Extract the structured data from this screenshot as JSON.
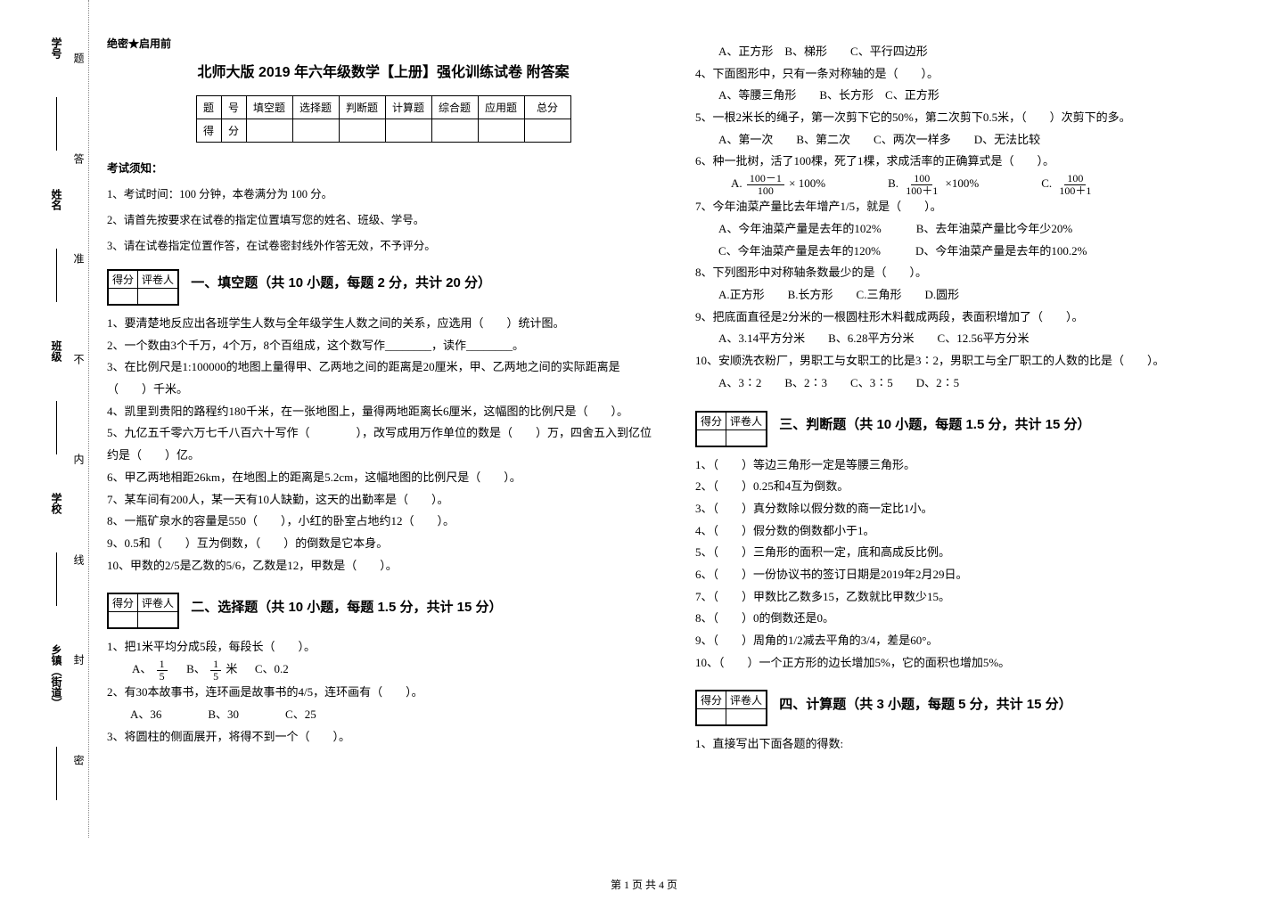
{
  "side": {
    "items1": [
      "乡镇（街道）",
      "学校",
      "班级",
      "姓名",
      "学号"
    ],
    "items2": [
      "密",
      "封",
      "线",
      "内",
      "不",
      "准",
      "答",
      "题"
    ]
  },
  "secret": "绝密★启用前",
  "title": "北师大版 2019 年六年级数学【上册】强化训练试卷 附答案",
  "score_table": {
    "row1": [
      "题",
      "号",
      "填空题",
      "选择题",
      "判断题",
      "计算题",
      "综合题",
      "应用题",
      "总分"
    ],
    "row2": [
      "得",
      "分",
      "",
      "",
      "",
      "",
      "",
      "",
      ""
    ]
  },
  "exam_notice_title": "考试须知：",
  "exam_notices": [
    "1、考试时间：100 分钟，本卷满分为 100 分。",
    "2、请首先按要求在试卷的指定位置填写您的姓名、班级、学号。",
    "3、请在试卷指定位置作答，在试卷密封线外作答无效，不予评分。"
  ],
  "grade_box": {
    "c1": "得分",
    "c2": "评卷人"
  },
  "section1": {
    "title": "一、填空题（共 10 小题，每题 2 分，共计 20 分）",
    "items": [
      "1、要清楚地反应出各班学生人数与全年级学生人数之间的关系，应选用（　　）统计图。",
      "2、一个数由3个千万，4个万，8个百组成，这个数写作________，读作________。",
      "3、在比例尺是1:100000的地图上量得甲、乙两地之间的距离是20厘米，甲、乙两地之间的实际距离是（　　）千米。",
      "4、凯里到贵阳的路程约180千米，在一张地图上，量得两地距离长6厘米，这幅图的比例尺是（　　）。",
      "5、九亿五千零六万七千八百六十写作（　　　　），改写成用万作单位的数是（　　）万，四舍五入到亿位约是（　　）亿。",
      "6、甲乙两地相距26km，在地图上的距离是5.2cm，这幅地图的比例尺是（　　）。",
      "7、某车间有200人，某一天有10人缺勤，这天的出勤率是（　　）。",
      "8、一瓶矿泉水的容量是550（　　），小红的卧室占地约12（　　）。",
      "9、0.5和（　　）互为倒数，（　　）的倒数是它本身。",
      "10、甲数的2/5是乙数的5/6，乙数是12，甲数是（　　）。"
    ]
  },
  "section2": {
    "title": "二、选择题（共 10 小题，每题 1.5 分，共计 15 分）",
    "items": [
      "1、把1米平均分成5段，每段长（　　）。",
      "2、有30本故事书，连环画是故事书的4/5，连环画有（　　）。",
      "3、将圆柱的侧面展开，将得不到一个（　　）。",
      "4、下面图形中，只有一条对称轴的是（　　）。",
      "5、一根2米长的绳子，第一次剪下它的50%，第二次剪下0.5米，（　　）次剪下的多。",
      "6、种一批树，活了100棵，死了1棵，求成活率的正确算式是（　　）。",
      "7、今年油菜产量比去年增产1/5，就是（　　）。",
      "8、下列图形中对称轴条数最少的是（　　）。",
      "9、把底面直径是2分米的一根圆柱形木料截成两段，表面积增加了（　　）。",
      "10、安顺洗衣粉厂，男职工与女职工的比是3∶2，男职工与全厂职工的人数的比是（　　）。"
    ],
    "opt1": {
      "a": "A、",
      "b": "B、",
      "bunit": "米",
      "c": "C、0.2"
    },
    "opt2": "　　A、36　　　　B、30　　　　C、25",
    "opt3": "　　A、正方形　B、梯形　　C、平行四边形",
    "opt4": "　　A、等腰三角形　　B、长方形　C、正方形",
    "opt5": "　　A、第一次　　B、第二次　　C、两次一样多　　D、无法比较",
    "opt6": {
      "a_pre": "A.",
      "a_n": "100－1",
      "a_d": "100",
      "a_suf": " × 100%",
      "b_pre": "B.",
      "b_n": "100",
      "b_d": "100＋1",
      "b_suf": "×100%",
      "c_pre": "C.",
      "c_n": "100",
      "c_d": "100＋1"
    },
    "opt7a": "　　A、今年油菜产量是去年的102%　　　B、去年油菜产量比今年少20%",
    "opt7b": "　　C、今年油菜产量是去年的120%　　　D、今年油菜产量是去年的100.2%",
    "opt8": "　　A.正方形　　B.长方形　　C.三角形　　D.圆形",
    "opt9": "　　A、3.14平方分米　　B、6.28平方分米　　C、12.56平方分米",
    "opt10": "　　A、3∶2　　B、2∶3　　C、3∶5　　D、2∶5"
  },
  "section3": {
    "title": "三、判断题（共 10 小题，每题 1.5 分，共计 15 分）",
    "items": [
      "1、（　　）等边三角形一定是等腰三角形。",
      "2、（　　）0.25和4互为倒数。",
      "3、（　　）真分数除以假分数的商一定比1小。",
      "4、（　　）假分数的倒数都小于1。",
      "5、（　　）三角形的面积一定，底和高成反比例。",
      "6、（　　）一份协议书的签订日期是2019年2月29日。",
      "7、（　　）甲数比乙数多15，乙数就比甲数少15。",
      "8、（　　）0的倒数还是0。",
      "9、（　　）周角的1/2减去平角的3/4，差是60°。",
      "10、（　　）一个正方形的边长增加5%，它的面积也增加5%。"
    ]
  },
  "section4": {
    "title": "四、计算题（共 3 小题，每题 5 分，共计 15 分）",
    "items": [
      "1、直接写出下面各题的得数:"
    ]
  },
  "footer": "第 1 页 共 4 页"
}
